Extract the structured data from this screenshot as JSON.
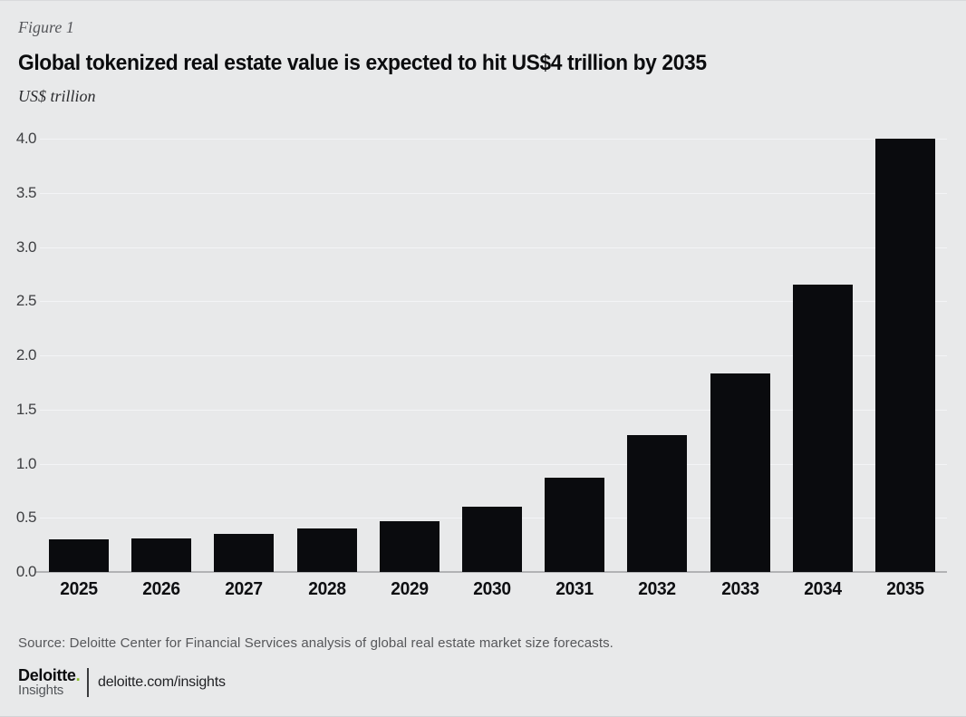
{
  "figure_label": "Figure 1",
  "title": "Global tokenized real estate value is expected to hit US$4 trillion by 2035",
  "unit_label": "US$ trillion",
  "source": "Source: Deloitte Center for Financial Services analysis of global real estate market size forecasts.",
  "footer": {
    "brand": "Deloitte",
    "brand_dot": ".",
    "brand_sub": "Insights",
    "link": "deloitte.com/insights"
  },
  "colors": {
    "background": "#e8e9ea",
    "bar": "#0a0b0e",
    "gridline": "#f3f4f6",
    "axis_line": "#b2b3b5",
    "title_text": "#0b0c0e",
    "muted_text": "#55565a",
    "deloitte_green": "#86bc25"
  },
  "chart_data": {
    "type": "bar",
    "title": "Global tokenized real estate value is expected to hit US$4 trillion by 2035",
    "xlabel": "",
    "ylabel": "US$ trillion",
    "categories": [
      "2025",
      "2026",
      "2027",
      "2028",
      "2029",
      "2030",
      "2031",
      "2032",
      "2033",
      "2034",
      "2035"
    ],
    "values": [
      0.3,
      0.31,
      0.35,
      0.4,
      0.47,
      0.6,
      0.87,
      1.26,
      1.83,
      2.65,
      4.0
    ],
    "ylim": [
      0,
      4
    ],
    "ytick_labels": [
      "0.0",
      "0.5",
      "1.0",
      "1.5",
      "2.0",
      "2.5",
      "3.0",
      "3.5",
      "4.0"
    ],
    "grid": true,
    "legend_position": "none"
  }
}
